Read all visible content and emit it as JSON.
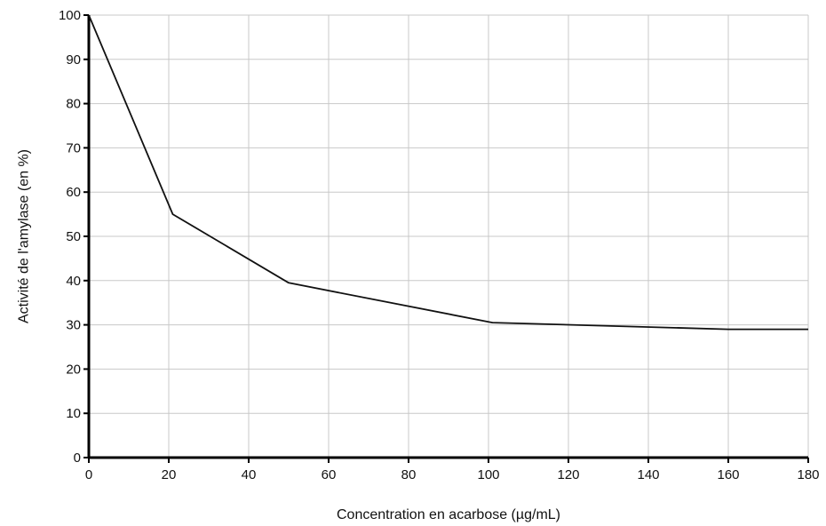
{
  "chart_data": {
    "type": "line",
    "title": "",
    "xlabel": "Concentration en acarbose (µg/mL)",
    "ylabel": "Activité de l'amylase (en %)",
    "xlim": [
      0,
      180
    ],
    "ylim": [
      0,
      100
    ],
    "x_ticks": [
      0,
      20,
      40,
      60,
      80,
      100,
      120,
      140,
      160,
      180
    ],
    "y_ticks": [
      0,
      10,
      20,
      30,
      40,
      50,
      60,
      70,
      80,
      90,
      100
    ],
    "grid": true,
    "legend": "none",
    "series": [
      {
        "color": "#111111",
        "x": [
          0,
          21,
          50,
          101,
          160,
          180
        ],
        "y": [
          100,
          55,
          39.5,
          30.5,
          29,
          29
        ]
      }
    ]
  }
}
